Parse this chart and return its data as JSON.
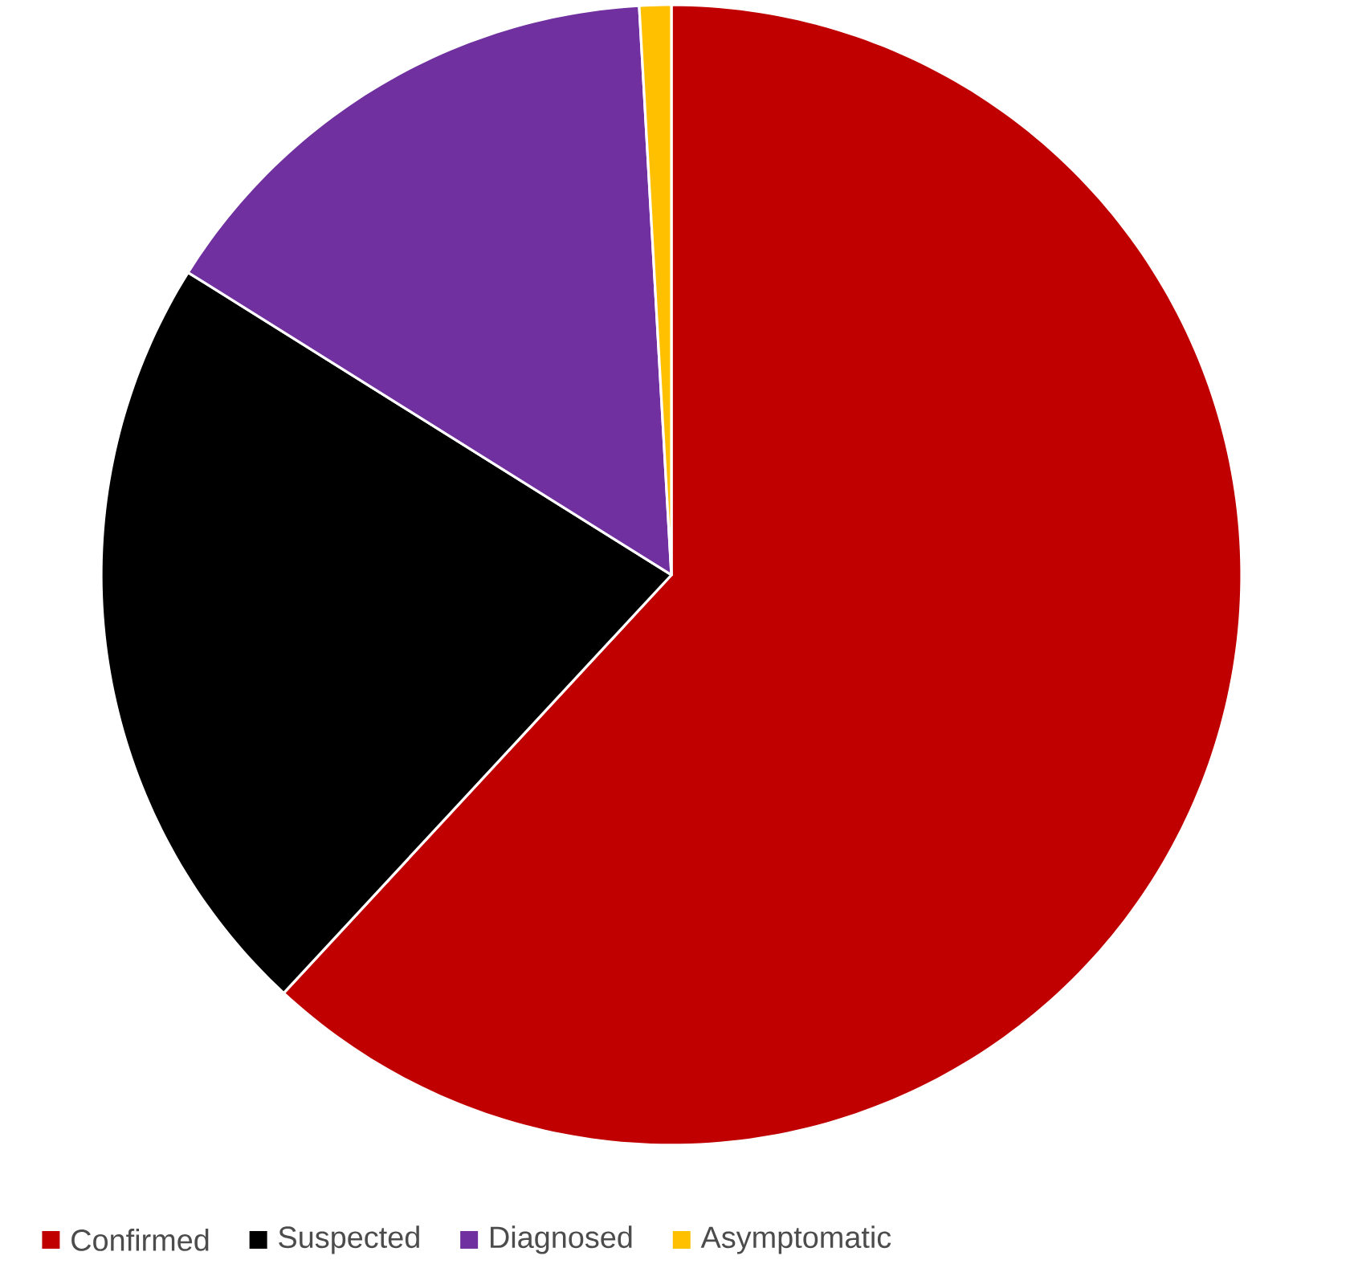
{
  "chart_data": {
    "type": "pie",
    "categories": [
      "Confirmed",
      "Suspected",
      "Diagnosed",
      "Asymptomatic"
    ],
    "values": [
      61.9,
      22.0,
      15.2,
      0.9
    ],
    "colors": [
      "#c00000",
      "#000000",
      "#7030a0",
      "#ffc000"
    ],
    "legend": "bottom"
  }
}
